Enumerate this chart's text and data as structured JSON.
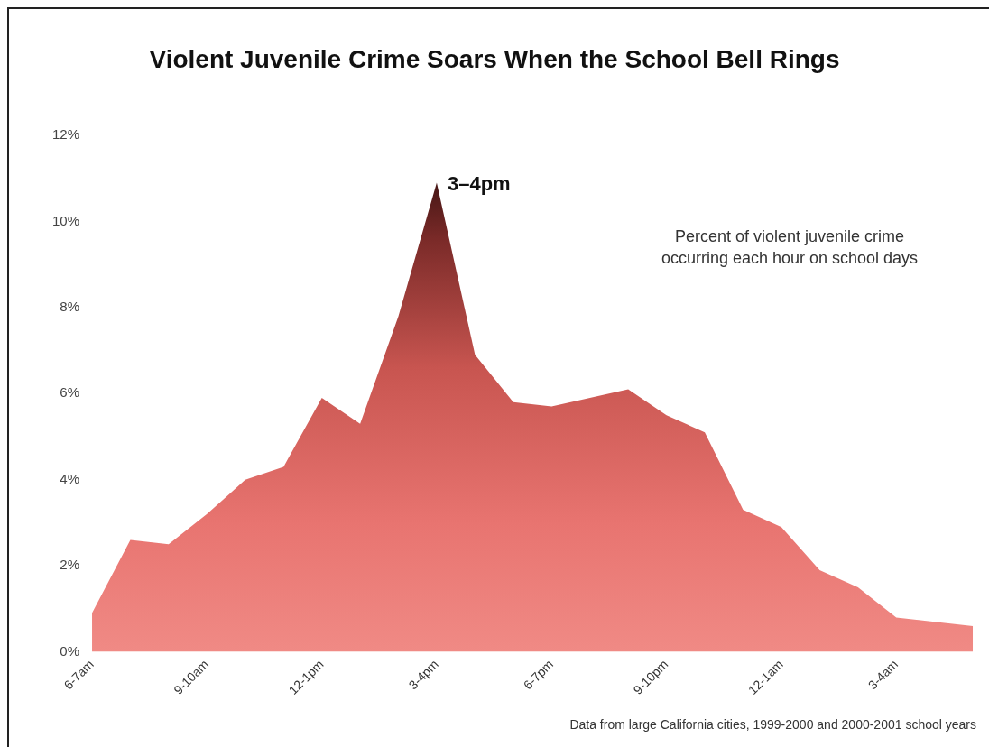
{
  "chart_data": {
    "type": "area",
    "title": "Violent Juvenile Crime Soars When the School Bell Rings",
    "categories": [
      "6-7am",
      null,
      null,
      "9-10am",
      null,
      null,
      "12-1pm",
      null,
      null,
      "3-4pm",
      null,
      null,
      "6-7pm",
      null,
      null,
      "9-10pm",
      null,
      null,
      "12-1am",
      null,
      null,
      "3-4am",
      null,
      null
    ],
    "series": [
      {
        "color": "#f08a85",
        "values": [
          0.9,
          2.6,
          2.5,
          3.2,
          4.0,
          4.3,
          5.9,
          5.3,
          7.8,
          10.9,
          6.9,
          5.8,
          5.7,
          5.9,
          6.1,
          5.5,
          5.1,
          3.3,
          2.9,
          1.9,
          1.5,
          0.8,
          0.7,
          0.6
        ]
      }
    ],
    "ylim": [
      0,
      12
    ],
    "yticks": [
      {
        "value": 0,
        "label": "0%"
      },
      {
        "value": 2,
        "label": "2%"
      },
      {
        "value": 4,
        "label": "4%"
      },
      {
        "value": 6,
        "label": "6%"
      },
      {
        "value": 8,
        "label": "8%"
      },
      {
        "value": 10,
        "label": "10%"
      },
      {
        "value": 12,
        "label": "12%"
      }
    ],
    "grid": false,
    "legend": false,
    "marker": "none",
    "annotations": [
      {
        "text": "3–4pm",
        "x": "3-4pm",
        "y": 10.9
      },
      "Percent of violent juvenile crime occurring each hour on school days",
      "Data from large California cities, 1999-2000 and 2000-2001 school years"
    ]
  }
}
